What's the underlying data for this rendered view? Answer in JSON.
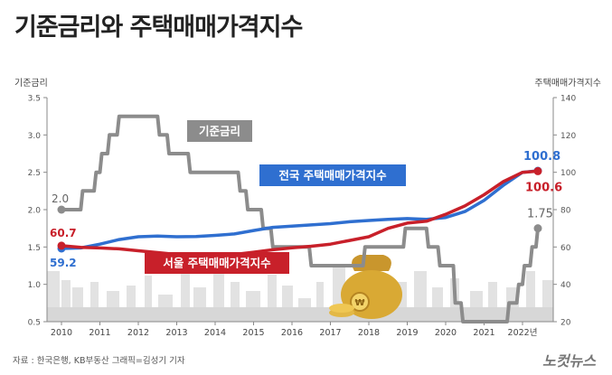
{
  "title": "기준금리와 주택매매가격지수",
  "source": "자료 : 한국은행, KB부동산    그래픽=김성기 기자",
  "logo": "노컷뉴스",
  "colors": {
    "rate": "#8c8c8c",
    "national": "#2f6fd0",
    "seoul": "#c8202a",
    "rate_label_bg": "#8c8c8c"
  },
  "chart_data": {
    "type": "line",
    "x_ticks": [
      "2010",
      "2011",
      "2012",
      "2013",
      "2014",
      "2015",
      "2016",
      "2017",
      "2018",
      "2019",
      "2020",
      "2021",
      "2022년"
    ],
    "y_left": {
      "label": "기준금리",
      "ticks": [
        "0.5",
        "1.0",
        "1.5",
        "2.0",
        "2.5",
        "3.0",
        "3.5"
      ],
      "min": 0.5,
      "max": 3.5
    },
    "y_right": {
      "label": "주택매매가격지수",
      "ticks": [
        "20",
        "40",
        "60",
        "80",
        "100",
        "120",
        "140"
      ],
      "min": 20,
      "max": 140
    },
    "series": [
      {
        "name": "기준금리",
        "axis": "left",
        "color": "#8c8c8c",
        "start_label": "2.0",
        "end_label": "1.75",
        "points": [
          [
            2010.0,
            2.0
          ],
          [
            2010.5,
            2.0
          ],
          [
            2010.55,
            2.25
          ],
          [
            2010.85,
            2.25
          ],
          [
            2010.9,
            2.5
          ],
          [
            2011.0,
            2.5
          ],
          [
            2011.05,
            2.75
          ],
          [
            2011.2,
            2.75
          ],
          [
            2011.25,
            3.0
          ],
          [
            2011.45,
            3.0
          ],
          [
            2011.5,
            3.25
          ],
          [
            2012.5,
            3.25
          ],
          [
            2012.55,
            3.0
          ],
          [
            2012.75,
            3.0
          ],
          [
            2012.8,
            2.75
          ],
          [
            2013.3,
            2.75
          ],
          [
            2013.35,
            2.5
          ],
          [
            2014.6,
            2.5
          ],
          [
            2014.65,
            2.25
          ],
          [
            2014.8,
            2.25
          ],
          [
            2014.85,
            2.0
          ],
          [
            2015.2,
            2.0
          ],
          [
            2015.25,
            1.75
          ],
          [
            2015.45,
            1.75
          ],
          [
            2015.5,
            1.5
          ],
          [
            2016.45,
            1.5
          ],
          [
            2016.5,
            1.25
          ],
          [
            2017.85,
            1.25
          ],
          [
            2017.9,
            1.5
          ],
          [
            2018.9,
            1.5
          ],
          [
            2018.95,
            1.75
          ],
          [
            2019.5,
            1.75
          ],
          [
            2019.55,
            1.5
          ],
          [
            2019.8,
            1.5
          ],
          [
            2019.85,
            1.25
          ],
          [
            2020.2,
            1.25
          ],
          [
            2020.25,
            0.75
          ],
          [
            2020.4,
            0.75
          ],
          [
            2020.45,
            0.5
          ],
          [
            2021.6,
            0.5
          ],
          [
            2021.65,
            0.75
          ],
          [
            2021.85,
            0.75
          ],
          [
            2021.9,
            1.0
          ],
          [
            2022.0,
            1.0
          ],
          [
            2022.05,
            1.25
          ],
          [
            2022.2,
            1.25
          ],
          [
            2022.25,
            1.5
          ],
          [
            2022.35,
            1.5
          ],
          [
            2022.4,
            1.75
          ]
        ]
      },
      {
        "name": "전국 주택매매가격지수",
        "axis": "right",
        "color": "#2f6fd0",
        "start_label": "59.2",
        "end_label": "100.8",
        "points": [
          [
            2010.0,
            59.2
          ],
          [
            2010.5,
            59.5
          ],
          [
            2011.0,
            61.5
          ],
          [
            2011.5,
            64.0
          ],
          [
            2012.0,
            65.5
          ],
          [
            2012.5,
            65.8
          ],
          [
            2013.0,
            65.5
          ],
          [
            2013.5,
            65.6
          ],
          [
            2014.0,
            66.2
          ],
          [
            2014.5,
            67.0
          ],
          [
            2015.0,
            68.8
          ],
          [
            2015.5,
            70.5
          ],
          [
            2016.0,
            71.2
          ],
          [
            2016.5,
            71.8
          ],
          [
            2017.0,
            72.5
          ],
          [
            2017.5,
            73.5
          ],
          [
            2018.0,
            74.2
          ],
          [
            2018.5,
            74.8
          ],
          [
            2019.0,
            75.2
          ],
          [
            2019.5,
            74.8
          ],
          [
            2020.0,
            75.8
          ],
          [
            2020.5,
            79.0
          ],
          [
            2021.0,
            85.0
          ],
          [
            2021.5,
            93.0
          ],
          [
            2022.0,
            100.0
          ],
          [
            2022.4,
            100.8
          ]
        ]
      },
      {
        "name": "서울 주택매매가격지수",
        "axis": "right",
        "color": "#c8202a",
        "start_label": "60.7",
        "end_label": "100.6",
        "points": [
          [
            2010.0,
            60.7
          ],
          [
            2010.5,
            59.8
          ],
          [
            2011.0,
            59.5
          ],
          [
            2011.5,
            59.0
          ],
          [
            2012.0,
            58.0
          ],
          [
            2012.5,
            57.0
          ],
          [
            2013.0,
            56.0
          ],
          [
            2013.5,
            55.5
          ],
          [
            2014.0,
            55.3
          ],
          [
            2014.5,
            56.0
          ],
          [
            2015.0,
            57.2
          ],
          [
            2015.5,
            58.5
          ],
          [
            2016.0,
            59.6
          ],
          [
            2016.5,
            60.4
          ],
          [
            2017.0,
            61.5
          ],
          [
            2017.5,
            63.5
          ],
          [
            2018.0,
            65.5
          ],
          [
            2018.5,
            70.0
          ],
          [
            2019.0,
            72.8
          ],
          [
            2019.5,
            73.8
          ],
          [
            2020.0,
            77.5
          ],
          [
            2020.5,
            82.0
          ],
          [
            2021.0,
            88.0
          ],
          [
            2021.5,
            95.0
          ],
          [
            2022.0,
            100.0
          ],
          [
            2022.4,
            100.6
          ]
        ]
      }
    ]
  }
}
